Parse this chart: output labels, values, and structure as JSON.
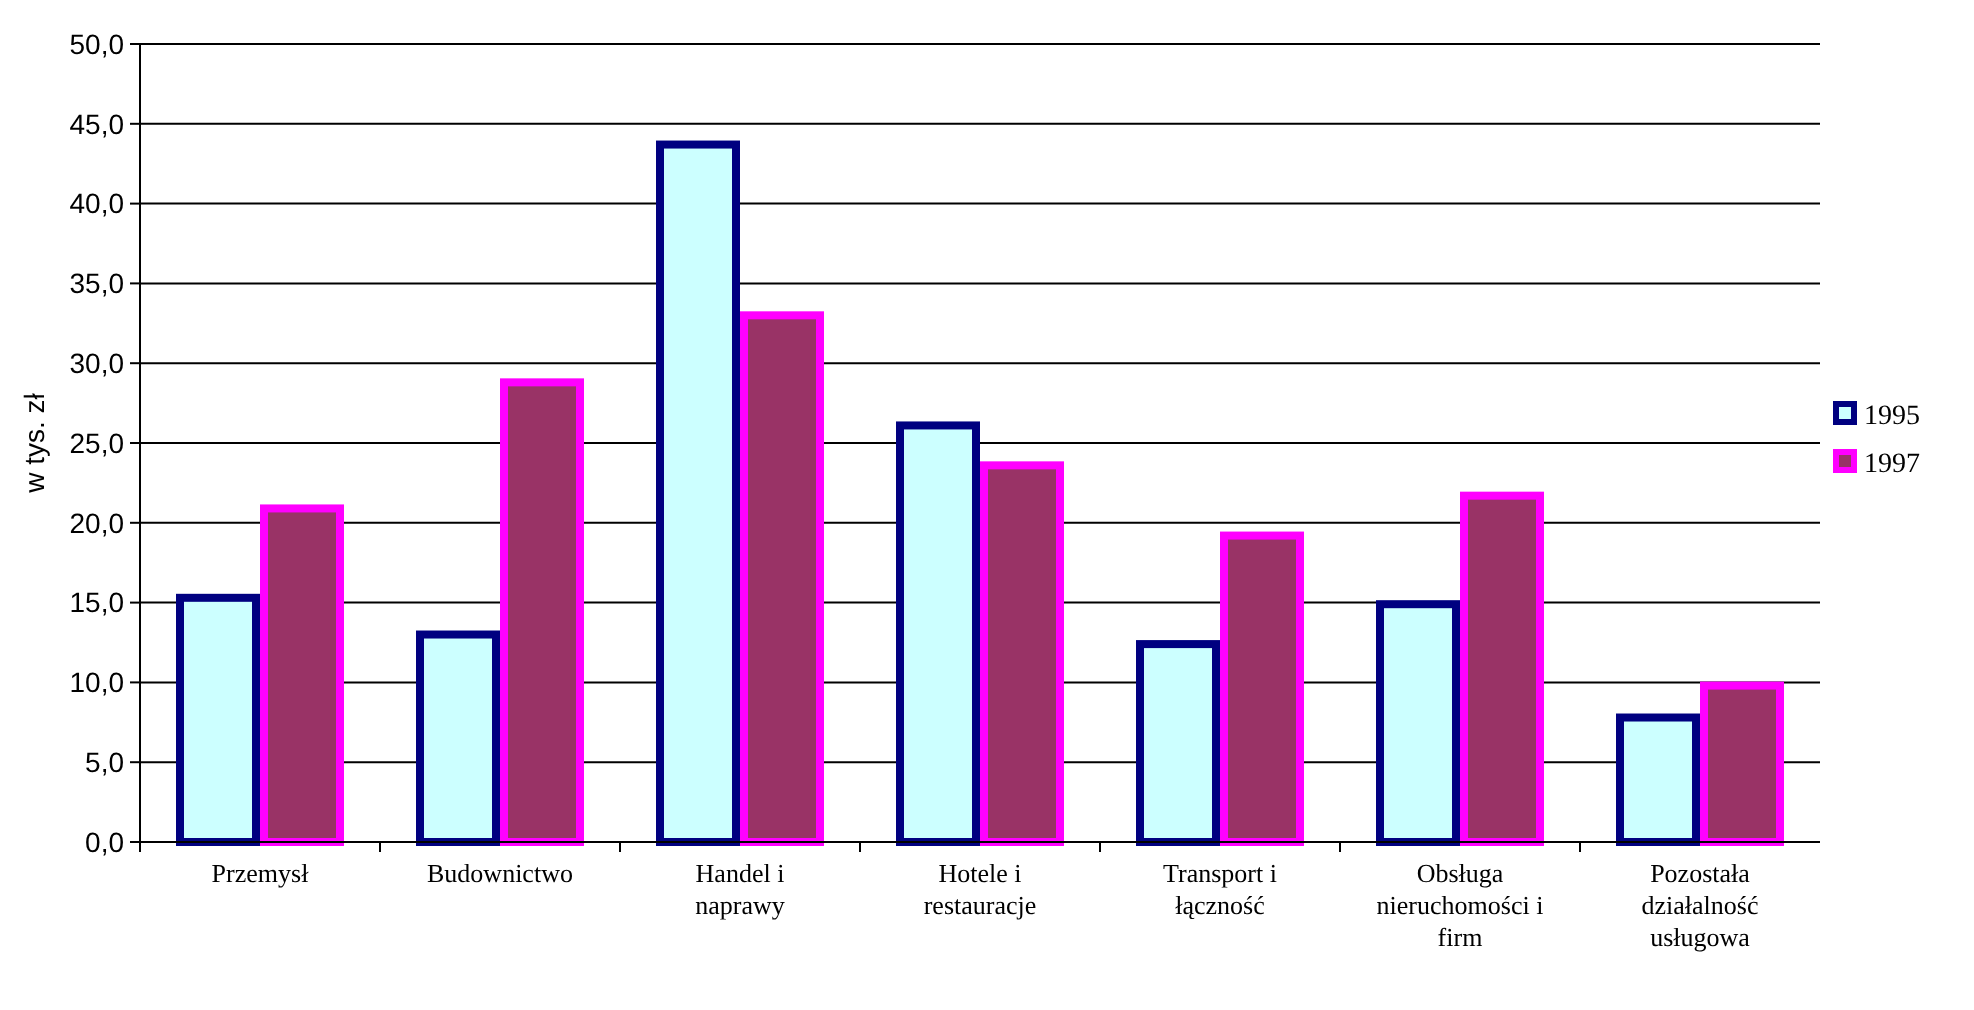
{
  "chart_data": {
    "type": "bar",
    "ylabel": "w tys. zł",
    "categories": [
      "Przemysł",
      "Budownictwo",
      "Handel i naprawy",
      "Hotele i restauracje",
      "Transport i łączność",
      "Obsługa nieruchomości i firm",
      "Pozostała działalność usługowa"
    ],
    "series": [
      {
        "name": "1995",
        "color": "#ccffff",
        "values": [
          15.3,
          13.0,
          43.7,
          26.1,
          12.4,
          14.9,
          7.8
        ]
      },
      {
        "name": "1997",
        "color": "#993366",
        "values": [
          20.9,
          28.8,
          33.0,
          23.6,
          19.2,
          21.7,
          9.8
        ]
      }
    ],
    "ylim": [
      0,
      50
    ],
    "yticks": [
      {
        "value": 0,
        "label": "0,0"
      },
      {
        "value": 5,
        "label": "5,0"
      },
      {
        "value": 10,
        "label": "10,0"
      },
      {
        "value": 15,
        "label": "15,0"
      },
      {
        "value": 20,
        "label": "20,0"
      },
      {
        "value": 25,
        "label": "25,0"
      },
      {
        "value": 30,
        "label": "30,0"
      },
      {
        "value": 35,
        "label": "35,0"
      },
      {
        "value": 40,
        "label": "40,0"
      },
      {
        "value": 45,
        "label": "45,0"
      },
      {
        "value": 50,
        "label": "50,0"
      }
    ],
    "grid": "y",
    "legend": "right"
  }
}
